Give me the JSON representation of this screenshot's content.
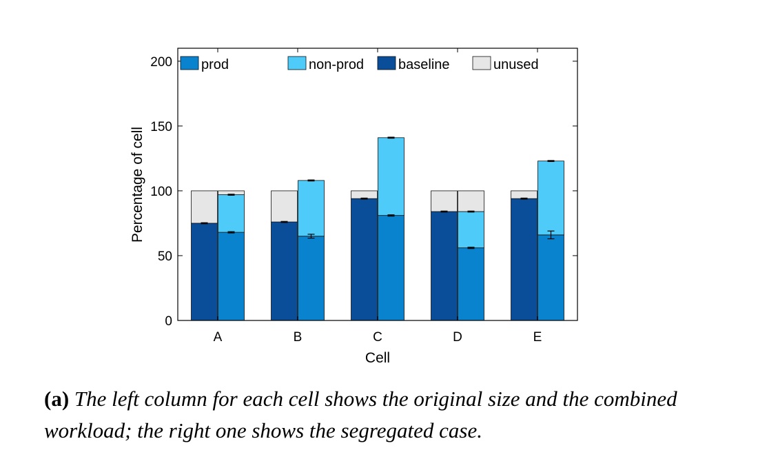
{
  "chart_data": {
    "type": "bar",
    "subtype": "grouped-stacked",
    "ylabel": "Percentage of cell",
    "xlabel": "Cell",
    "ylim": [
      0,
      210
    ],
    "yticks": [
      0,
      50,
      100,
      150,
      200
    ],
    "categories": [
      "A",
      "B",
      "C",
      "D",
      "E"
    ],
    "legend": {
      "placement": "top",
      "entries": [
        "prod",
        "non-prod",
        "baseline",
        "unused"
      ]
    },
    "colors": {
      "prod": "#0a83cf",
      "non-prod": "#4ecbf8",
      "baseline": "#0a4d99",
      "unused": "#e6e6e6"
    },
    "columns": {
      "left": {
        "description": "original size and combined workload",
        "stack": [
          "baseline",
          "unused"
        ],
        "baseline": [
          75,
          76,
          94,
          84,
          94
        ],
        "total": [
          100,
          100,
          100,
          100,
          100
        ]
      },
      "right": {
        "description": "segregated case",
        "stack": [
          "prod",
          "non-prod",
          "unused"
        ],
        "prod": [
          68,
          65,
          81,
          56,
          66
        ],
        "prod_plus_nonprod": [
          97,
          108,
          141,
          84,
          123
        ],
        "total": [
          100,
          null,
          null,
          100,
          null
        ],
        "prod_error": [
          0.5,
          1.5,
          0.5,
          0.5,
          3
        ]
      }
    }
  },
  "caption": {
    "label": "(a)",
    "text": "The left column for each cell shows the original size and the combined workload; the right one shows the segregated case."
  }
}
